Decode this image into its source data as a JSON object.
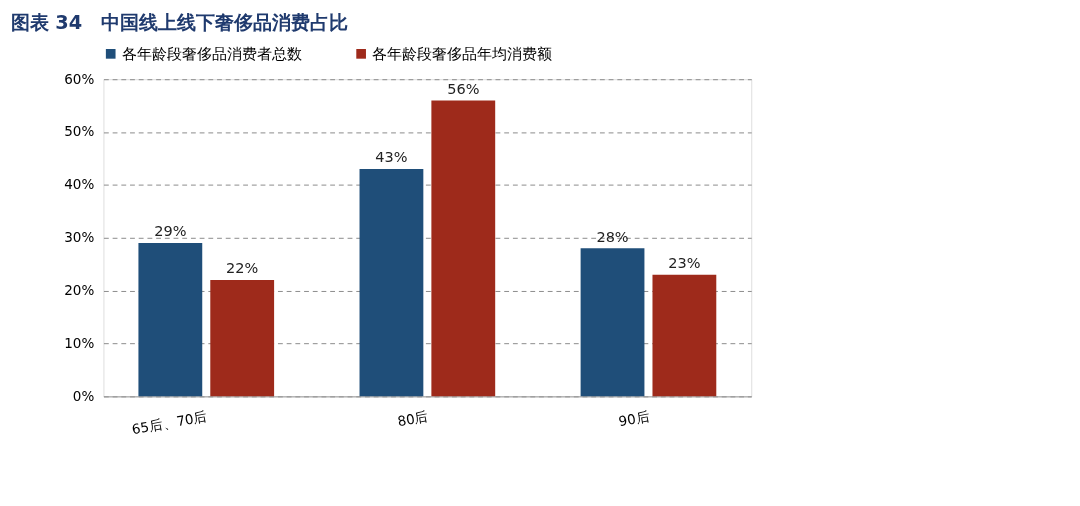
{
  "chart_data": {
    "type": "bar",
    "title": "图表 34　中国线上线下奢侈品消费占比",
    "categories": [
      "65后、70后",
      "80后",
      "90后"
    ],
    "series": [
      {
        "name": "各年龄段奢侈品消费者总数",
        "color": "#1f4e79",
        "values": [
          29,
          43,
          28
        ]
      },
      {
        "name": "各年龄段奢侈品年均消费额",
        "color": "#9e2a1b",
        "values": [
          22,
          56,
          23
        ]
      }
    ],
    "value_labels": [
      [
        "29%",
        "43%",
        "28%"
      ],
      [
        "22%",
        "56%",
        "23%"
      ]
    ],
    "ylim": [
      0,
      60
    ],
    "yticks": [
      {
        "value": 0,
        "label": "0%"
      },
      {
        "value": 10,
        "label": "10%"
      },
      {
        "value": 20,
        "label": "20%"
      },
      {
        "value": 30,
        "label": "30%"
      },
      {
        "value": 40,
        "label": "40%"
      },
      {
        "value": 50,
        "label": "50%"
      },
      {
        "value": 60,
        "label": "60%"
      }
    ],
    "grid": "y",
    "legend": "top"
  }
}
